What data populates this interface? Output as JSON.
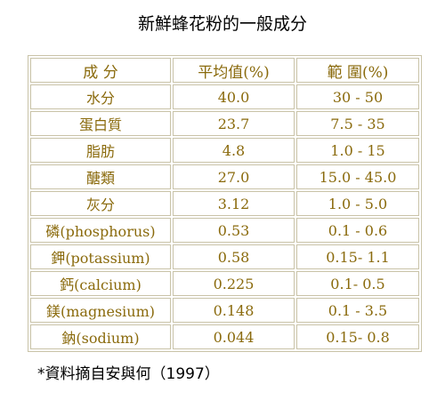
{
  "title": "新鮮蜂花粉的一般成分",
  "table": {
    "headers": [
      "成 分",
      "平均值(%)",
      "範 圍(%)"
    ],
    "rows": [
      {
        "component": "水分",
        "average": "40.0",
        "range": "30 - 50"
      },
      {
        "component": "蛋白質",
        "average": "23.7",
        "range": "7.5 - 35"
      },
      {
        "component": "脂肪",
        "average": "4.8",
        "range": "1.0 - 15"
      },
      {
        "component": "醣類",
        "average": "27.0",
        "range": "15.0 - 45.0"
      },
      {
        "component": "灰分",
        "average": "3.12",
        "range": "1.0 - 5.0"
      },
      {
        "component": "磷(phosphorus)",
        "average": "0.53",
        "range": "0.1 - 0.6"
      },
      {
        "component": "鉀(potassium)",
        "average": "0.58",
        "range": "0.15- 1.1"
      },
      {
        "component": "鈣(calcium)",
        "average": "0.225",
        "range": "0.1- 0.5"
      },
      {
        "component": "鎂(magnesium)",
        "average": "0.148",
        "range": "0.1 - 3.5"
      },
      {
        "component": "鈉(sodium)",
        "average": "0.044",
        "range": "0.15- 0.8"
      }
    ]
  },
  "footnote": "*資料摘自安與何（1997）",
  "colors": {
    "cell_text": "#8a6a0c",
    "border": "#c9c3a8",
    "background": "#ffffff"
  }
}
